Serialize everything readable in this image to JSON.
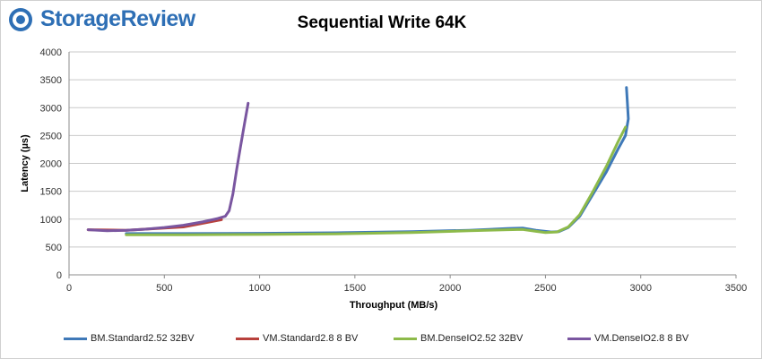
{
  "brand": {
    "name": "StorageReview",
    "color": "#2e6fb5"
  },
  "chart_data": {
    "type": "line",
    "title": "Sequential Write 64K",
    "xlabel": "Throughput (MB/s)",
    "ylabel": "Latency (µs)",
    "xlim": [
      0,
      3500
    ],
    "ylim": [
      0,
      4000
    ],
    "xticks": [
      0,
      500,
      1000,
      1500,
      2000,
      2500,
      3000,
      3500
    ],
    "yticks": [
      0,
      500,
      1000,
      1500,
      2000,
      2500,
      3000,
      3500,
      4000
    ],
    "grid": true,
    "legend_position": "bottom",
    "series": [
      {
        "name": "BM.Standard2.52 32BV",
        "color": "#3f79b8",
        "x": [
          300,
          600,
          1000,
          1400,
          1800,
          2100,
          2300,
          2380,
          2450,
          2530,
          2570,
          2620,
          2680,
          2750,
          2820,
          2880,
          2920,
          2935,
          2930,
          2925
        ],
        "y": [
          740,
          740,
          745,
          755,
          775,
          800,
          830,
          840,
          800,
          770,
          775,
          850,
          1050,
          1450,
          1850,
          2250,
          2500,
          2800,
          3100,
          3360
        ]
      },
      {
        "name": "VM.Standard2.8 8 BV",
        "color": "#b8413c",
        "x": [
          100,
          300,
          600,
          800
        ],
        "y": [
          810,
          800,
          860,
          990
        ]
      },
      {
        "name": "BM.DenseIO2.52 32BV",
        "color": "#8dba4a",
        "x": [
          300,
          600,
          1000,
          1400,
          1800,
          2100,
          2300,
          2380,
          2450,
          2500,
          2560,
          2620,
          2680,
          2750,
          2820,
          2880,
          2920
        ],
        "y": [
          720,
          720,
          725,
          735,
          760,
          790,
          810,
          815,
          780,
          760,
          770,
          860,
          1080,
          1500,
          1950,
          2380,
          2650
        ]
      },
      {
        "name": "VM.DenseIO2.8 8 BV",
        "color": "#7a56a0",
        "x": [
          100,
          200,
          300,
          400,
          500,
          600,
          700,
          780,
          820,
          840,
          860,
          880,
          900,
          920,
          940
        ],
        "y": [
          810,
          790,
          800,
          820,
          850,
          890,
          950,
          1010,
          1050,
          1150,
          1450,
          1900,
          2300,
          2700,
          3080
        ]
      }
    ]
  }
}
